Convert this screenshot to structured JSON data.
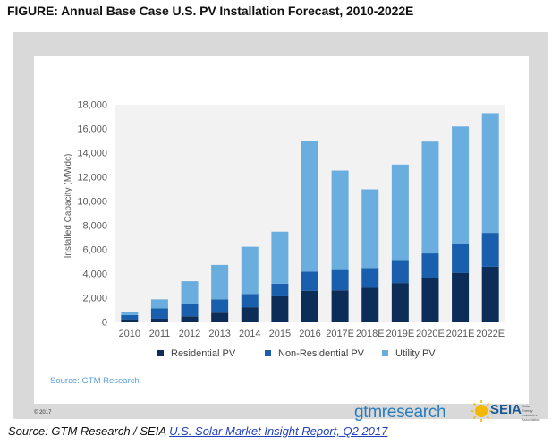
{
  "figure_title": "FIGURE: Annual Base Case U.S. PV Installation Forecast, 2010-2022E",
  "chart_source": "Source: GTM Research",
  "copyright": "© 2017",
  "logo_gtm_text": "gtmresearch",
  "logo_seia_text": "SEIA",
  "logo_seia_sub": "Solar Energy Industries Association",
  "source_prefix": "Source: GTM Research / SEIA ",
  "source_link": "U.S. Solar Market Insight Report, Q2 2017",
  "colors": {
    "residential": "#0c2d57",
    "nonresidential": "#1a5fae",
    "utility": "#6aaee0",
    "source_text": "#5a9fd4"
  },
  "chart_data": {
    "type": "bar",
    "stacked": true,
    "title": "",
    "xlabel": "",
    "ylabel": "Installed Capacity (MWdc)",
    "ylim": [
      0,
      18000
    ],
    "yticks": [
      "0",
      "2,000",
      "4,000",
      "6,000",
      "8,000",
      "10,000",
      "12,000",
      "14,000",
      "16,000",
      "18,000"
    ],
    "categories": [
      "2010",
      "2011",
      "2012",
      "2013",
      "2014",
      "2015",
      "2016",
      "2017E",
      "2018E",
      "2019E",
      "2020E",
      "2021E",
      "2022E"
    ],
    "series": [
      {
        "name": "Residential PV",
        "values": [
          250,
          300,
          500,
          800,
          1250,
          2150,
          2600,
          2650,
          2850,
          3250,
          3650,
          4100,
          4600
        ]
      },
      {
        "name": "Non-Residential PV",
        "values": [
          350,
          850,
          1050,
          1100,
          1100,
          1050,
          1600,
          1750,
          1650,
          1900,
          2050,
          2400,
          2800
        ]
      },
      {
        "name": "Utility PV",
        "values": [
          250,
          750,
          1850,
          2850,
          3900,
          4300,
          10800,
          8150,
          6500,
          7900,
          9250,
          9700,
          9900
        ]
      }
    ],
    "grid": false,
    "legend": "bottom"
  }
}
